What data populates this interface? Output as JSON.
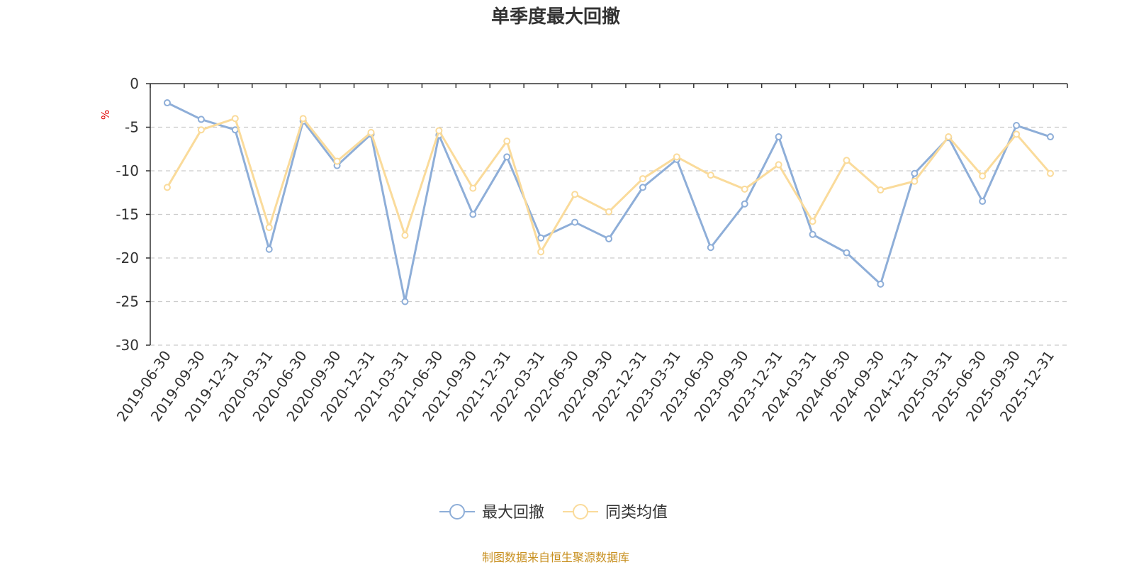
{
  "chart_data": {
    "type": "line",
    "title": "单季度最大回撤",
    "unit_label": "%",
    "ylim": [
      -30,
      0
    ],
    "yticks": [
      0,
      -5,
      -10,
      -15,
      -20,
      -25,
      -30
    ],
    "grid": "horizontal dashed",
    "legend_position": "bottom-center",
    "categories": [
      "2019-06-30",
      "2019-09-30",
      "2019-12-31",
      "2020-03-31",
      "2020-06-30",
      "2020-09-30",
      "2020-12-31",
      "2021-03-31",
      "2021-06-30",
      "2021-09-30",
      "2021-12-31",
      "2022-03-31",
      "2022-06-30",
      "2022-09-30",
      "2022-12-31",
      "2023-03-31",
      "2023-06-30",
      "2023-09-30",
      "2023-12-31",
      "2024-03-31",
      "2024-06-30",
      "2024-09-30",
      "2024-12-31",
      "2025-03-31",
      "2025-06-30",
      "2025-09-30",
      "2025-12-31"
    ],
    "series": [
      {
        "name": "最大回撤",
        "color": "#8eaed8",
        "values": [
          -2.2,
          -4.1,
          -5.3,
          -19.0,
          -4.3,
          -9.4,
          -5.8,
          -25.0,
          -5.9,
          -15.0,
          -8.4,
          -17.7,
          -15.9,
          -17.8,
          -11.9,
          -8.7,
          -18.8,
          -13.8,
          -6.1,
          -17.3,
          -19.4,
          -23.0,
          -10.3,
          -6.2,
          -13.5,
          -4.8,
          -6.1
        ]
      },
      {
        "name": "同类均值",
        "color": "#fadb9b",
        "values": [
          -11.9,
          -5.3,
          -4.0,
          -16.5,
          -4.0,
          -8.9,
          -5.6,
          -17.4,
          -5.4,
          -12.0,
          -6.6,
          -19.3,
          -12.7,
          -14.7,
          -10.9,
          -8.4,
          -10.5,
          -12.1,
          -9.3,
          -15.8,
          -8.8,
          -12.2,
          -11.2,
          -6.1,
          -10.6,
          -5.8,
          -10.3
        ]
      }
    ]
  },
  "footer": {
    "source": "制图数据来自恒生聚源数据库"
  }
}
